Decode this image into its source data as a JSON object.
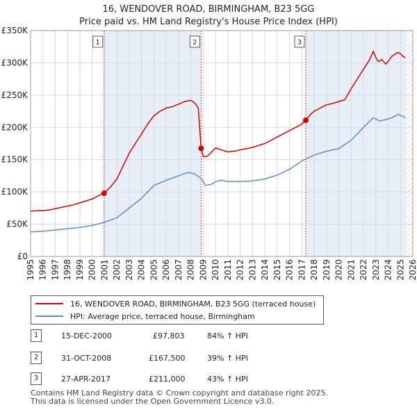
{
  "title_line1": "16, WENDOVER ROAD, BIRMINGHAM, B23 5GG",
  "title_line2": "Price paid vs. HM Land Registry's House Price Index (HPI)",
  "colors": {
    "property": "#cc0000",
    "hpi": "#5b8ccc",
    "shade": "#e8eef8",
    "marker_line": "#d04040",
    "grid": "#d8d8d8"
  },
  "chart_data": {
    "type": "line",
    "title": "16, WENDOVER ROAD, BIRMINGHAM, B23 5GG",
    "subtitle": "Price paid vs. HM Land Registry's House Price Index (HPI)",
    "xlabel": "",
    "ylabel": "",
    "xlim": [
      1995,
      2026
    ],
    "ylim": [
      0,
      350000
    ],
    "y_ticks": [
      0,
      50000,
      100000,
      150000,
      200000,
      250000,
      300000,
      350000
    ],
    "y_tick_labels": [
      "£0",
      "£50K",
      "£100K",
      "£150K",
      "£200K",
      "£250K",
      "£300K",
      "£350K"
    ],
    "x_ticks": [
      "1995",
      "1996",
      "1997",
      "1998",
      "1999",
      "2000",
      "2001",
      "2002",
      "2003",
      "2004",
      "2005",
      "2006",
      "2007",
      "2008",
      "2009",
      "2010",
      "2011",
      "2012",
      "2013",
      "2014",
      "2015",
      "2016",
      "2017",
      "2018",
      "2019",
      "2020",
      "2021",
      "2022",
      "2023",
      "2024",
      "2025",
      "2026"
    ],
    "grid": true,
    "series": [
      {
        "name": "16, WENDOVER ROAD, BIRMINGHAM, B23 5GG (terraced house)",
        "x": [
          1995.0,
          1995.5,
          1996.0,
          1996.5,
          1997.0,
          1997.5,
          1998.0,
          1998.5,
          1999.0,
          1999.5,
          2000.0,
          2000.5,
          2000.96,
          2001.5,
          2002.0,
          2002.5,
          2003.0,
          2003.5,
          2004.0,
          2004.5,
          2005.0,
          2005.5,
          2006.0,
          2006.5,
          2007.0,
          2007.5,
          2008.0,
          2008.3,
          2008.6,
          2008.83,
          2009.0,
          2009.3,
          2009.6,
          2010.0,
          2010.5,
          2011.0,
          2011.5,
          2012.0,
          2012.5,
          2013.0,
          2013.5,
          2014.0,
          2014.5,
          2015.0,
          2015.5,
          2016.0,
          2016.5,
          2017.0,
          2017.32,
          2017.7,
          2018.0,
          2018.5,
          2019.0,
          2019.5,
          2020.0,
          2020.5,
          2021.0,
          2021.5,
          2022.0,
          2022.5,
          2022.8,
          2023.0,
          2023.2,
          2023.5,
          2023.8,
          2024.0,
          2024.3,
          2024.6,
          2024.8,
          2025.0,
          2025.2,
          2025.4
        ],
        "values": [
          70000,
          71000,
          71000,
          72000,
          74000,
          76000,
          78000,
          80000,
          83000,
          86000,
          89000,
          94000,
          97803,
          108000,
          120000,
          140000,
          160000,
          175000,
          190000,
          205000,
          218000,
          225000,
          230000,
          232000,
          236000,
          240000,
          242000,
          238000,
          230000,
          167500,
          155000,
          155000,
          160000,
          168000,
          165000,
          162000,
          163000,
          165000,
          167000,
          169000,
          172000,
          175000,
          180000,
          185000,
          190000,
          195000,
          200000,
          205000,
          211000,
          220000,
          225000,
          230000,
          235000,
          237000,
          240000,
          243000,
          260000,
          275000,
          290000,
          305000,
          318000,
          308000,
          302000,
          305000,
          298000,
          302000,
          310000,
          314000,
          316000,
          314000,
          310000,
          308000
        ]
      },
      {
        "name": "HPI: Average price, terraced house, Birmingham",
        "x": [
          1995.0,
          1996.0,
          1997.0,
          1998.0,
          1999.0,
          2000.0,
          2001.0,
          2002.0,
          2003.0,
          2004.0,
          2005.0,
          2006.0,
          2007.0,
          2007.7,
          2008.3,
          2008.83,
          2009.2,
          2009.7,
          2010.0,
          2010.5,
          2011.0,
          2012.0,
          2013.0,
          2014.0,
          2015.0,
          2016.0,
          2017.0,
          2018.0,
          2019.0,
          2020.0,
          2021.0,
          2022.0,
          2022.8,
          2023.3,
          2023.8,
          2024.3,
          2024.8,
          2025.2,
          2025.4
        ],
        "values": [
          38000,
          39000,
          41000,
          43000,
          45000,
          48000,
          53000,
          60000,
          75000,
          90000,
          110000,
          118000,
          125000,
          130000,
          128000,
          121000,
          110000,
          112000,
          116000,
          118000,
          116000,
          116000,
          117000,
          120000,
          126000,
          135000,
          148000,
          157000,
          163000,
          167000,
          180000,
          200000,
          215000,
          210000,
          212000,
          215000,
          220000,
          217000,
          215000
        ]
      }
    ],
    "sales": [
      {
        "label": "1",
        "date": "15-DEC-2000",
        "x": 2000.96,
        "price": 97803,
        "price_text": "£97,803",
        "hpi_text": "84% ↑ HPI"
      },
      {
        "label": "2",
        "date": "31-OCT-2008",
        "x": 2008.83,
        "price": 167500,
        "price_text": "£167,500",
        "hpi_text": "39% ↑ HPI"
      },
      {
        "label": "3",
        "date": "27-APR-2017",
        "x": 2017.32,
        "price": 211000,
        "price_text": "£211,000",
        "hpi_text": "43% ↑ HPI"
      }
    ],
    "legend": [
      "16, WENDOVER ROAD, BIRMINGHAM, B23 5GG (terraced house)",
      "HPI: Average price, terraced house, Birmingham"
    ],
    "legend_position": "below"
  },
  "footer_line1": "Contains HM Land Registry data © Crown copyright and database right 2025.",
  "footer_line2": "This data is licensed under the Open Government Licence v3.0."
}
